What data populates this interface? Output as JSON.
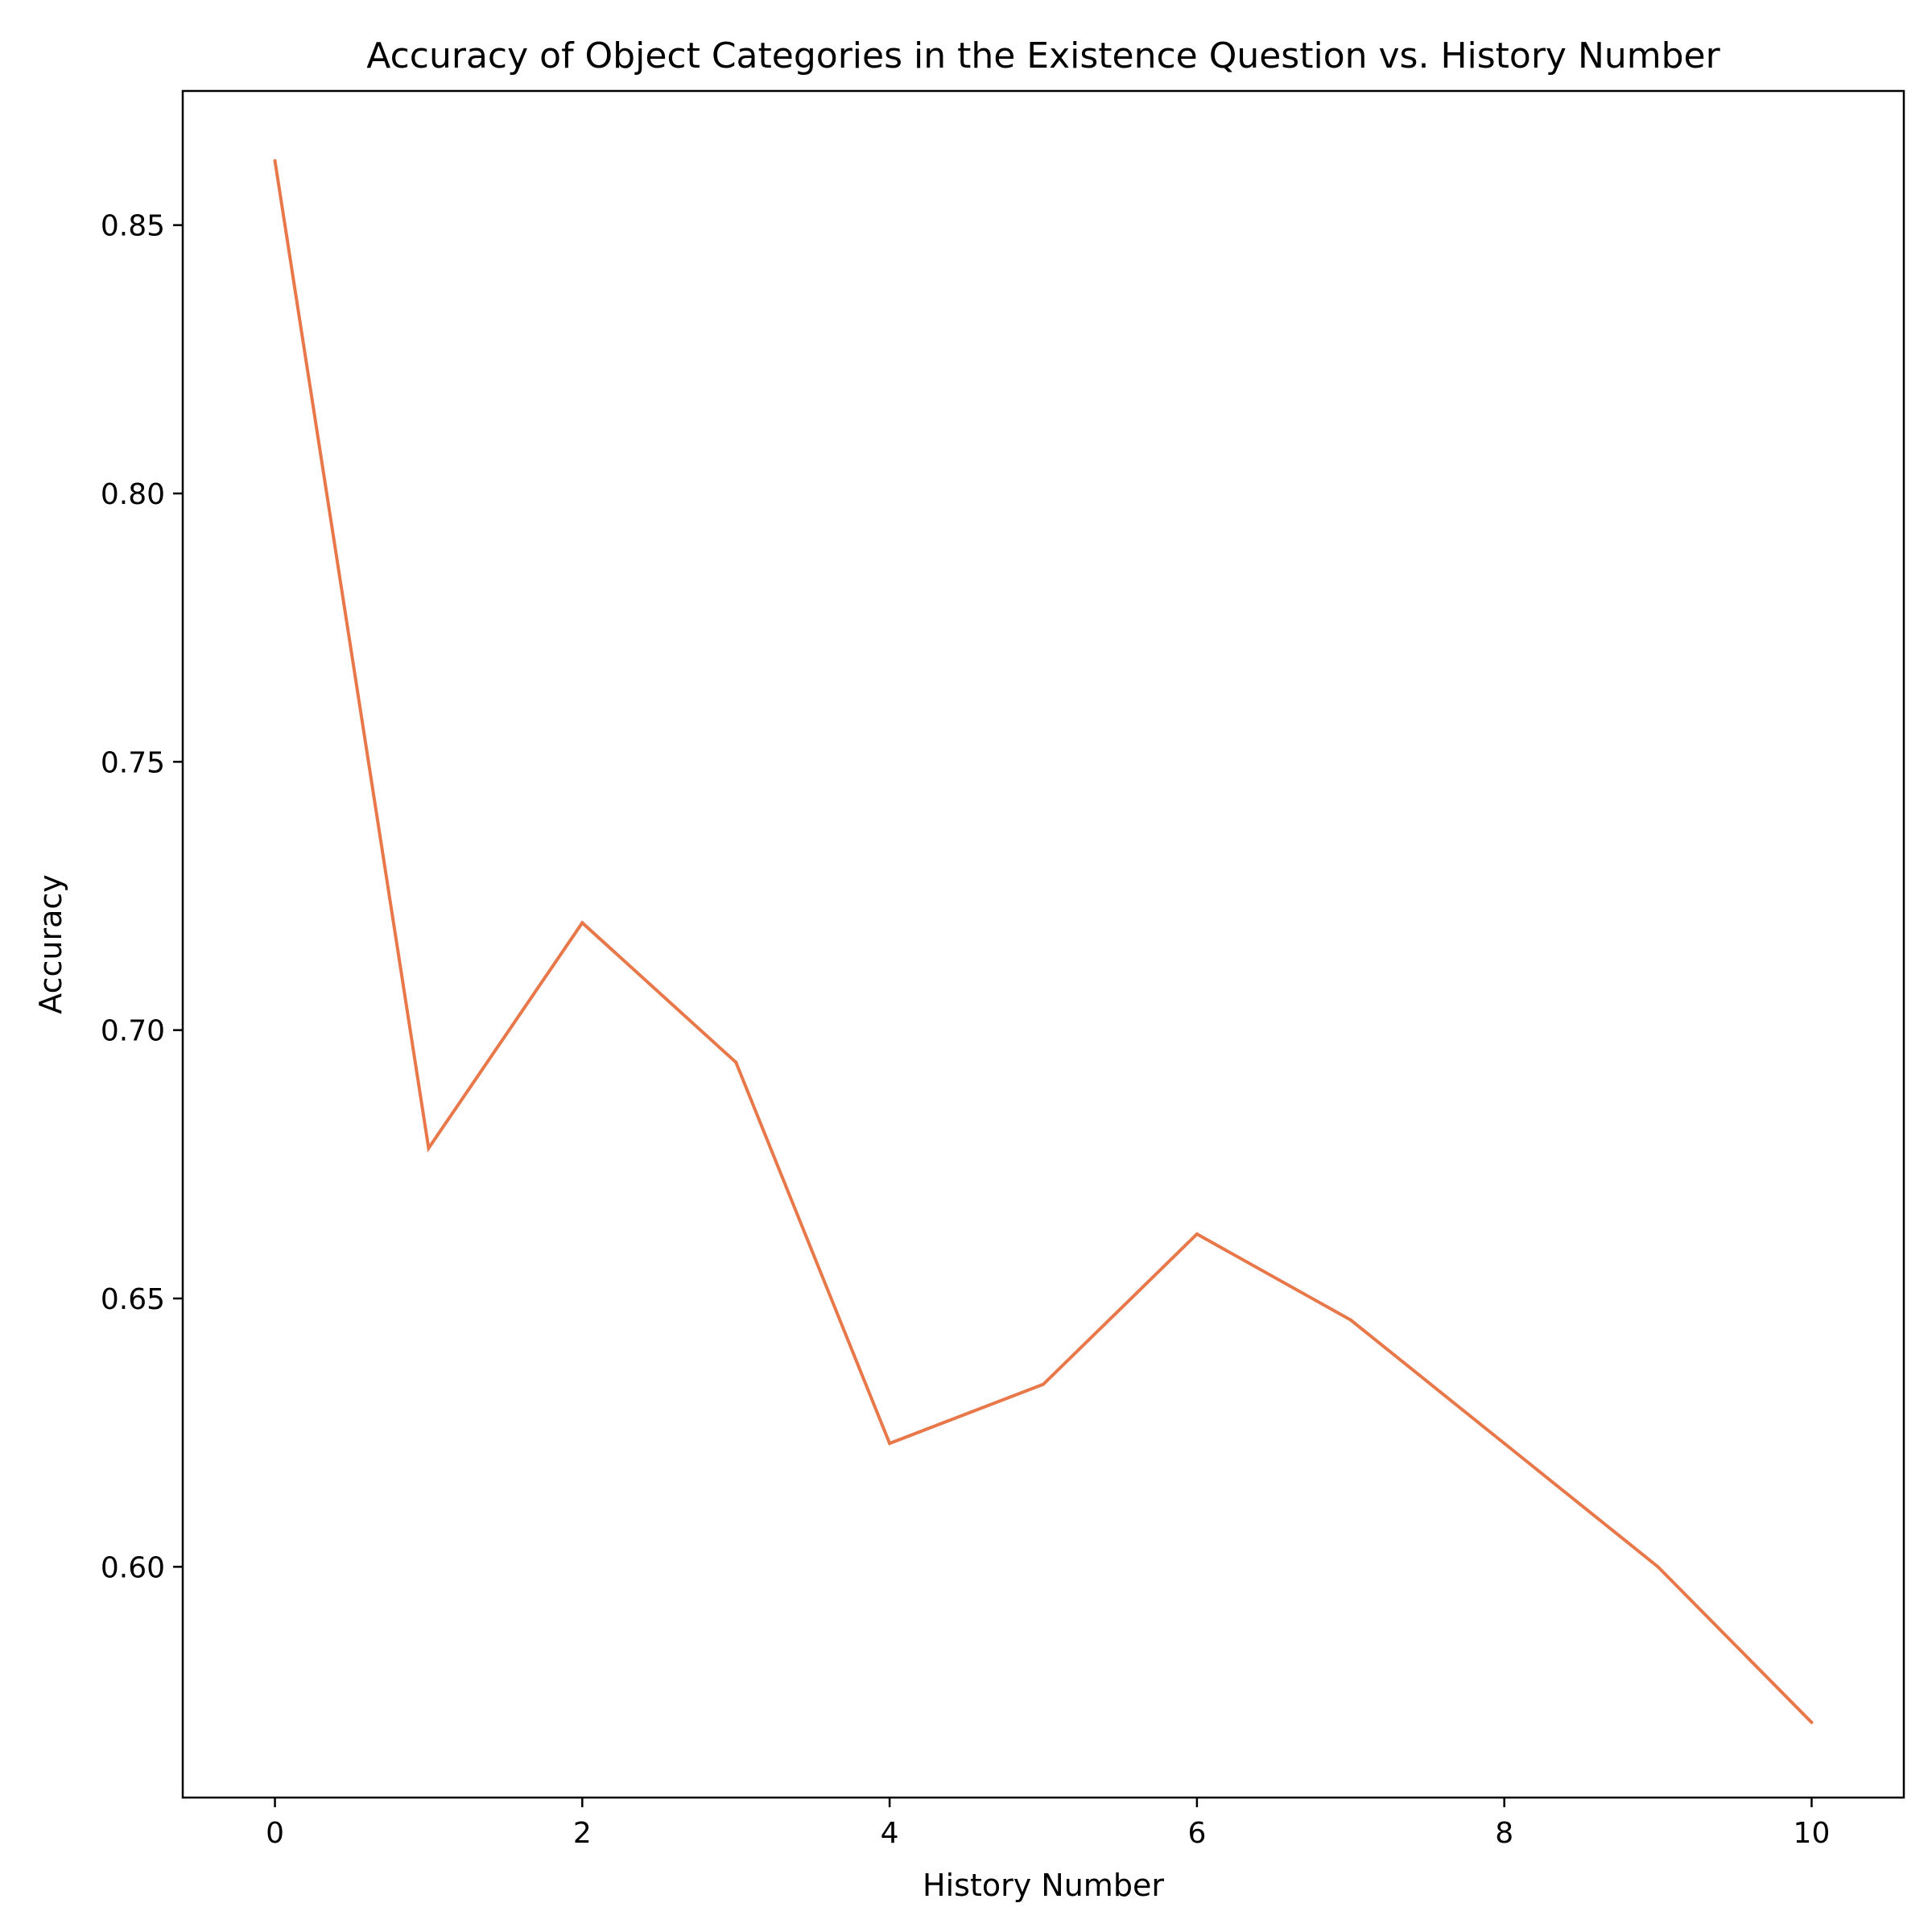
{
  "chart_data": {
    "type": "line",
    "title": "Accuracy of Object Categories in the Existence Question vs. History Number",
    "xlabel": "History Number",
    "ylabel": "Accuracy",
    "x": [
      0,
      1,
      2,
      3,
      4,
      5,
      6,
      7,
      8,
      9,
      10
    ],
    "series": [
      {
        "color": "#e8784a",
        "values": [
          0.862,
          0.678,
          0.72,
          0.694,
          0.623,
          0.634,
          0.662,
          0.646,
          0.623,
          0.6,
          0.571
        ]
      }
    ],
    "xlim": [
      -0.6,
      10.6
    ],
    "ylim": [
      0.557,
      0.875
    ],
    "xticks": [
      0,
      2,
      4,
      6,
      8,
      10
    ],
    "xtick_labels": [
      "0",
      "2",
      "4",
      "6",
      "8",
      "10"
    ],
    "yticks": [
      0.6,
      0.65,
      0.7,
      0.75,
      0.8,
      0.85
    ],
    "ytick_labels": [
      "0.60",
      "0.65",
      "0.70",
      "0.75",
      "0.80",
      "0.85"
    ],
    "grid": false,
    "legend": "none"
  }
}
